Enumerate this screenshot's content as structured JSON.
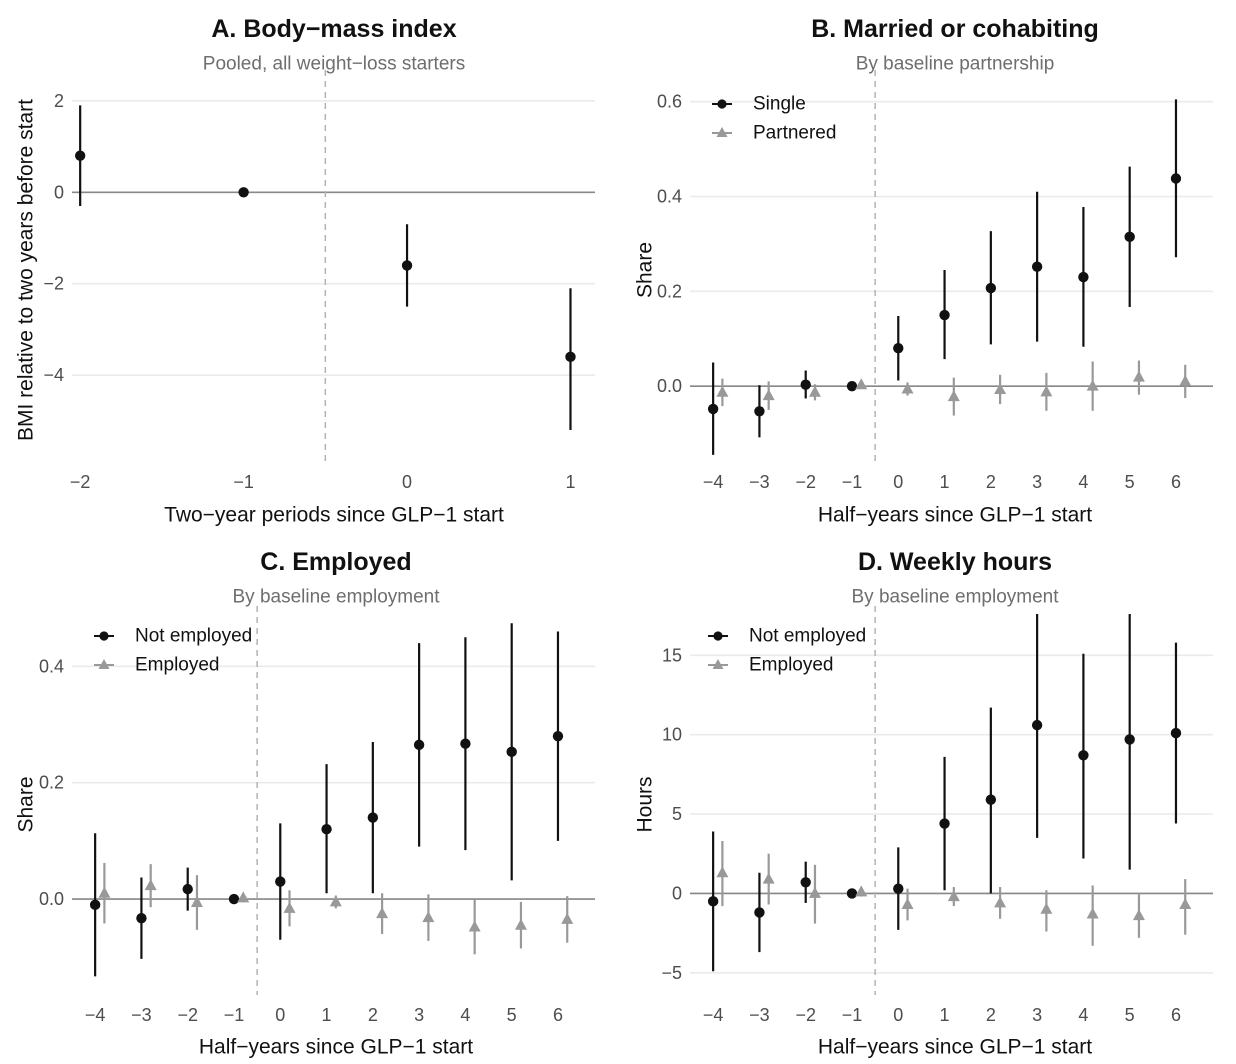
{
  "chart_data": [
    {
      "type": "scatter",
      "title": "A. Body−mass index",
      "subtitle": "Pooled, all weight−loss starters",
      "xlabel": "Two−year periods since GLP−1 start",
      "ylabel": "BMI relative to two years before start",
      "xlim": [
        -2.05,
        1.15
      ],
      "ylim": [
        -5.9,
        2.5
      ],
      "x_ticks": [
        -2,
        -1,
        0,
        1
      ],
      "x_tick_labels": [
        "−2",
        "−1",
        "0",
        "1"
      ],
      "y_ticks": [
        2,
        0,
        -2,
        -4
      ],
      "y_tick_labels": [
        "2",
        "0",
        "−2",
        "−4"
      ],
      "reference_line_x": -0.5,
      "grid": "horizontal",
      "legend": "none",
      "series": [
        {
          "color": "#111111",
          "marker": "circle",
          "points": [
            {
              "x": -2,
              "y": 0.8,
              "lo": -0.3,
              "hi": 1.9
            },
            {
              "x": -1,
              "y": 0.0,
              "lo": 0.0,
              "hi": 0.0
            },
            {
              "x": 0,
              "y": -1.6,
              "lo": -2.5,
              "hi": -0.7
            },
            {
              "x": 1,
              "y": -3.6,
              "lo": -5.2,
              "hi": -2.1
            }
          ]
        }
      ]
    },
    {
      "type": "scatter",
      "title": "B. Married or cohabiting",
      "subtitle": "By baseline partnership",
      "xlabel": "Half−years since GLP−1 start",
      "ylabel": "Share",
      "xlim": [
        -4.5,
        6.8
      ],
      "ylim": [
        -0.16,
        0.65
      ],
      "x_ticks": [
        -4,
        -3,
        -2,
        -1,
        0,
        1,
        2,
        3,
        4,
        5,
        6
      ],
      "x_tick_labels": [
        "−4",
        "−3",
        "−2",
        "−1",
        "0",
        "1",
        "2",
        "3",
        "4",
        "5",
        "6"
      ],
      "y_ticks": [
        0.6,
        0.4,
        0.2,
        0.0
      ],
      "y_tick_labels": [
        "0.6",
        "0.4",
        "0.2",
        "0.0"
      ],
      "reference_line_x": -0.5,
      "grid": "horizontal",
      "legend": "top-left",
      "series": [
        {
          "name": "Single",
          "color": "#111111",
          "marker": "circle",
          "points": [
            {
              "x": -4,
              "y": -0.048,
              "lo": -0.145,
              "hi": 0.05
            },
            {
              "x": -3,
              "y": -0.053,
              "lo": -0.108,
              "hi": 0.002
            },
            {
              "x": -2,
              "y": 0.003,
              "lo": -0.026,
              "hi": 0.033
            },
            {
              "x": -1,
              "y": 0.0,
              "lo": 0.0,
              "hi": 0.0
            },
            {
              "x": 0,
              "y": 0.08,
              "lo": 0.012,
              "hi": 0.148
            },
            {
              "x": 1,
              "y": 0.15,
              "lo": 0.057,
              "hi": 0.245
            },
            {
              "x": 2,
              "y": 0.207,
              "lo": 0.088,
              "hi": 0.327
            },
            {
              "x": 3,
              "y": 0.252,
              "lo": 0.094,
              "hi": 0.41
            },
            {
              "x": 4,
              "y": 0.23,
              "lo": 0.083,
              "hi": 0.378
            },
            {
              "x": 5,
              "y": 0.315,
              "lo": 0.167,
              "hi": 0.463
            },
            {
              "x": 6,
              "y": 0.438,
              "lo": 0.272,
              "hi": 0.605
            }
          ]
        },
        {
          "name": "Partnered",
          "color": "#999999",
          "marker": "triangle",
          "offset": 0.2,
          "points": [
            {
              "x": -4,
              "y": -0.013,
              "lo": -0.042,
              "hi": 0.016
            },
            {
              "x": -3,
              "y": -0.02,
              "lo": -0.05,
              "hi": 0.01
            },
            {
              "x": -2,
              "y": -0.013,
              "lo": -0.03,
              "hi": 0.004
            },
            {
              "x": -1,
              "y": 0.003,
              "lo": -0.004,
              "hi": 0.008
            },
            {
              "x": 0,
              "y": -0.006,
              "lo": -0.02,
              "hi": 0.008
            },
            {
              "x": 1,
              "y": -0.022,
              "lo": -0.062,
              "hi": 0.018
            },
            {
              "x": 2,
              "y": -0.007,
              "lo": -0.038,
              "hi": 0.024
            },
            {
              "x": 3,
              "y": -0.012,
              "lo": -0.052,
              "hi": 0.028
            },
            {
              "x": 4,
              "y": 0.0,
              "lo": -0.052,
              "hi": 0.052
            },
            {
              "x": 5,
              "y": 0.019,
              "lo": -0.018,
              "hi": 0.054
            },
            {
              "x": 6,
              "y": 0.01,
              "lo": -0.025,
              "hi": 0.045
            }
          ]
        }
      ]
    },
    {
      "type": "scatter",
      "title": "C. Employed",
      "subtitle": "By baseline employment",
      "xlabel": "Half−years since GLP−1 start",
      "ylabel": "Share",
      "xlim": [
        -4.5,
        6.8
      ],
      "ylim": [
        -0.165,
        0.49
      ],
      "x_ticks": [
        -4,
        -3,
        -2,
        -1,
        0,
        1,
        2,
        3,
        4,
        5,
        6
      ],
      "x_tick_labels": [
        "−4",
        "−3",
        "−2",
        "−1",
        "0",
        "1",
        "2",
        "3",
        "4",
        "5",
        "6"
      ],
      "y_ticks": [
        0.4,
        0.2,
        0.0
      ],
      "y_tick_labels": [
        "0.4",
        "0.2",
        "0.0"
      ],
      "reference_line_x": -0.5,
      "grid": "horizontal",
      "legend": "top-left",
      "series": [
        {
          "name": "Not employed",
          "color": "#111111",
          "marker": "circle",
          "points": [
            {
              "x": -4,
              "y": -0.01,
              "lo": -0.133,
              "hi": 0.113
            },
            {
              "x": -3,
              "y": -0.033,
              "lo": -0.103,
              "hi": 0.037
            },
            {
              "x": -2,
              "y": 0.017,
              "lo": -0.02,
              "hi": 0.054
            },
            {
              "x": -1,
              "y": 0.0,
              "lo": 0.0,
              "hi": 0.0
            },
            {
              "x": 0,
              "y": 0.03,
              "lo": -0.07,
              "hi": 0.13
            },
            {
              "x": 1,
              "y": 0.12,
              "lo": 0.01,
              "hi": 0.232
            },
            {
              "x": 2,
              "y": 0.14,
              "lo": 0.01,
              "hi": 0.27
            },
            {
              "x": 3,
              "y": 0.265,
              "lo": 0.09,
              "hi": 0.44
            },
            {
              "x": 4,
              "y": 0.267,
              "lo": 0.084,
              "hi": 0.45
            },
            {
              "x": 5,
              "y": 0.253,
              "lo": 0.032,
              "hi": 0.474
            },
            {
              "x": 6,
              "y": 0.28,
              "lo": 0.1,
              "hi": 0.46
            }
          ]
        },
        {
          "name": "Employed",
          "color": "#999999",
          "marker": "triangle",
          "offset": 0.2,
          "points": [
            {
              "x": -4,
              "y": 0.01,
              "lo": -0.042,
              "hi": 0.062
            },
            {
              "x": -3,
              "y": 0.023,
              "lo": -0.014,
              "hi": 0.06
            },
            {
              "x": -2,
              "y": -0.006,
              "lo": -0.053,
              "hi": 0.041
            },
            {
              "x": -1,
              "y": 0.002,
              "lo": -0.004,
              "hi": 0.008
            },
            {
              "x": 0,
              "y": -0.016,
              "lo": -0.047,
              "hi": 0.015
            },
            {
              "x": 1,
              "y": -0.005,
              "lo": -0.016,
              "hi": 0.006
            },
            {
              "x": 2,
              "y": -0.025,
              "lo": -0.06,
              "hi": 0.01
            },
            {
              "x": 3,
              "y": -0.032,
              "lo": -0.072,
              "hi": 0.008
            },
            {
              "x": 4,
              "y": -0.048,
              "lo": -0.095,
              "hi": -0.001
            },
            {
              "x": 5,
              "y": -0.045,
              "lo": -0.085,
              "hi": -0.005
            },
            {
              "x": 6,
              "y": -0.035,
              "lo": -0.075,
              "hi": 0.005
            }
          ]
        }
      ]
    },
    {
      "type": "scatter",
      "title": "D. Weekly hours",
      "subtitle": "By baseline employment",
      "xlabel": "Half−years since GLP−1 start",
      "ylabel": "Hours",
      "xlim": [
        -4.5,
        6.8
      ],
      "ylim": [
        -6.4,
        17.6
      ],
      "x_ticks": [
        -4,
        -3,
        -2,
        -1,
        0,
        1,
        2,
        3,
        4,
        5,
        6
      ],
      "x_tick_labels": [
        "−4",
        "−3",
        "−2",
        "−1",
        "0",
        "1",
        "2",
        "3",
        "4",
        "5",
        "6"
      ],
      "y_ticks": [
        15,
        10,
        5,
        0,
        -5
      ],
      "y_tick_labels": [
        "15",
        "10",
        "5",
        "0",
        "−5"
      ],
      "reference_line_x": -0.5,
      "grid": "horizontal",
      "legend": "top-left",
      "series": [
        {
          "name": "Not employed",
          "color": "#111111",
          "marker": "circle",
          "points": [
            {
              "x": -4,
              "y": -0.5,
              "lo": -4.9,
              "hi": 3.9
            },
            {
              "x": -3,
              "y": -1.2,
              "lo": -3.7,
              "hi": 1.3
            },
            {
              "x": -2,
              "y": 0.7,
              "lo": -0.6,
              "hi": 2.0
            },
            {
              "x": -1,
              "y": 0.0,
              "lo": 0.0,
              "hi": 0.0
            },
            {
              "x": 0,
              "y": 0.3,
              "lo": -2.3,
              "hi": 2.9
            },
            {
              "x": 1,
              "y": 4.4,
              "lo": 0.2,
              "hi": 8.6
            },
            {
              "x": 2,
              "y": 5.9,
              "lo": 0.0,
              "hi": 11.7
            },
            {
              "x": 3,
              "y": 10.6,
              "lo": 3.5,
              "hi": 17.6
            },
            {
              "x": 4,
              "y": 8.7,
              "lo": 2.2,
              "hi": 15.1
            },
            {
              "x": 5,
              "y": 9.7,
              "lo": 1.5,
              "hi": 17.6
            },
            {
              "x": 6,
              "y": 10.1,
              "lo": 4.4,
              "hi": 15.8
            }
          ]
        },
        {
          "name": "Employed",
          "color": "#999999",
          "marker": "triangle",
          "offset": 0.2,
          "points": [
            {
              "x": -4,
              "y": 1.3,
              "lo": -0.8,
              "hi": 3.3
            },
            {
              "x": -3,
              "y": 0.9,
              "lo": -0.7,
              "hi": 2.5
            },
            {
              "x": -2,
              "y": 0.0,
              "lo": -1.9,
              "hi": 1.8
            },
            {
              "x": -1,
              "y": 0.1,
              "lo": -0.2,
              "hi": 0.3
            },
            {
              "x": 0,
              "y": -0.7,
              "lo": -1.7,
              "hi": 0.3
            },
            {
              "x": 1,
              "y": -0.2,
              "lo": -0.8,
              "hi": 0.4
            },
            {
              "x": 2,
              "y": -0.6,
              "lo": -1.6,
              "hi": 0.4
            },
            {
              "x": 3,
              "y": -1.0,
              "lo": -2.4,
              "hi": 0.2
            },
            {
              "x": 4,
              "y": -1.3,
              "lo": -3.3,
              "hi": 0.5
            },
            {
              "x": 5,
              "y": -1.4,
              "lo": -2.8,
              "hi": 0.0
            },
            {
              "x": 6,
              "y": -0.7,
              "lo": -2.6,
              "hi": 0.9
            }
          ]
        }
      ]
    }
  ]
}
